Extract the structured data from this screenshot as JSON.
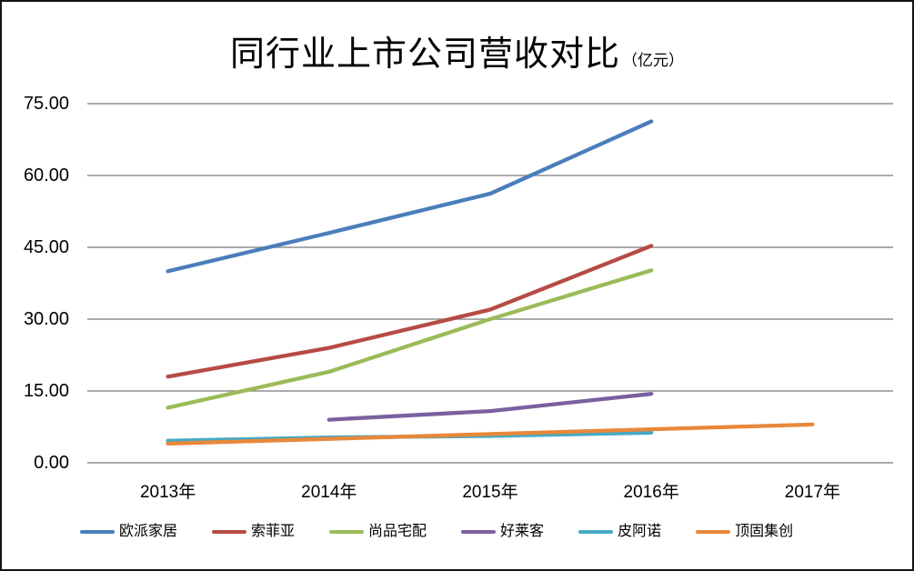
{
  "frame": {
    "background": "#ffffff",
    "border_color": "#141414",
    "gridline_color": "#8F8F8F",
    "text_color": "#000000"
  },
  "chart_data": {
    "type": "line",
    "title": "同行业上市公司营收对比",
    "title_suffix": "（亿元）",
    "xlabel": "",
    "ylabel": "",
    "categories": [
      "2013年",
      "2014年",
      "2015年",
      "2016年",
      "2017年"
    ],
    "y_ticks": [
      "75.00",
      "60.00",
      "45.00",
      "30.00",
      "15.00",
      "0.00"
    ],
    "ylim": [
      0,
      75
    ],
    "y_step": 15,
    "grid": true,
    "legend_position": "bottom",
    "series": [
      {
        "name": "欧派家居",
        "color": "#4A7EBB",
        "values": [
          40,
          48,
          56.2,
          71.3,
          null
        ]
      },
      {
        "name": "索菲亚",
        "color": "#B64B46",
        "values": [
          18,
          24,
          32,
          45.3,
          null
        ]
      },
      {
        "name": "尚品宅配",
        "color": "#9BBB59",
        "values": [
          11.5,
          19,
          30,
          40.2,
          null
        ]
      },
      {
        "name": "好莱客",
        "color": "#7B60A0",
        "values": [
          null,
          9,
          10.8,
          14.4,
          null
        ]
      },
      {
        "name": "皮阿诺",
        "color": "#45AAC4",
        "values": [
          4.6,
          5.3,
          5.6,
          6.3,
          null
        ]
      },
      {
        "name": "顶固集创",
        "color": "#E8883B",
        "values": [
          4,
          5,
          6,
          7,
          8
        ]
      }
    ]
  }
}
